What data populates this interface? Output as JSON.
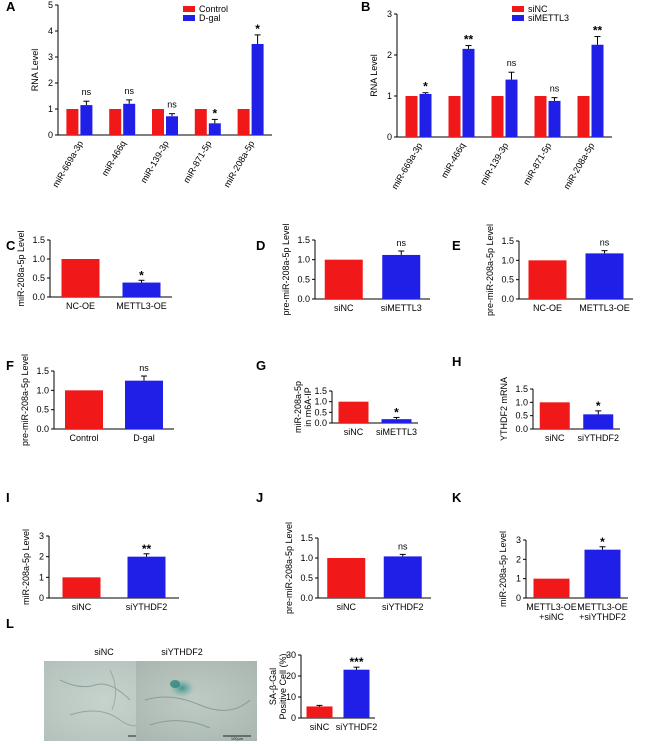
{
  "colors": {
    "red": "#f01818",
    "blue": "#1f1fe8"
  },
  "micrographs": [
    {
      "panel": "L",
      "label": "siNC",
      "scale_text": "100μm"
    },
    {
      "panel": "L",
      "label": "siYTHDF2",
      "scale_text": "100μm"
    }
  ],
  "chart_data": [
    {
      "panel": "A",
      "type": "bar",
      "ylabel": "RNA Level",
      "ylim": [
        0,
        5
      ],
      "yticks": [
        0,
        1,
        2,
        3,
        4,
        5
      ],
      "categories": [
        "miR-669a-3p",
        "miR-466q",
        "miR-139-3p",
        "miR-871-5p",
        "miR-208a-5p"
      ],
      "series": [
        {
          "name": "Control",
          "color": "red",
          "values": [
            1,
            1,
            1,
            1,
            1
          ],
          "err": [
            0,
            0,
            0,
            0,
            0
          ]
        },
        {
          "name": "D-gal",
          "color": "blue",
          "values": [
            1.15,
            1.2,
            0.72,
            0.45,
            3.5
          ],
          "err": [
            0.15,
            0.15,
            0.1,
            0.15,
            0.35
          ]
        }
      ],
      "annotations": [
        "ns",
        "ns",
        "ns",
        "*",
        "*"
      ],
      "legend": "top-right"
    },
    {
      "panel": "B",
      "type": "bar",
      "ylabel": "RNA Level",
      "ylim": [
        0,
        3
      ],
      "yticks": [
        0,
        1,
        2,
        3
      ],
      "categories": [
        "miR-669a-3p",
        "miR-466q",
        "miR-139-3p",
        "miR-871-5p",
        "miR-208a-5p"
      ],
      "series": [
        {
          "name": "siNC",
          "color": "red",
          "values": [
            1,
            1,
            1,
            1,
            1
          ],
          "err": [
            0,
            0,
            0,
            0,
            0
          ]
        },
        {
          "name": "siMETTL3",
          "color": "blue",
          "values": [
            1.05,
            2.15,
            1.4,
            0.88,
            2.25
          ],
          "err": [
            0.03,
            0.08,
            0.18,
            0.08,
            0.2
          ]
        }
      ],
      "annotations": [
        "*",
        "**",
        "ns",
        "ns",
        "**"
      ],
      "legend": "top-right"
    },
    {
      "panel": "C",
      "type": "bar",
      "ylabel": "miR-208a-5p Level",
      "ylim": [
        0,
        1.5
      ],
      "yticks": [
        "0.0",
        "0.5",
        "1.0",
        "1.5"
      ],
      "categories": [
        "NC-OE",
        "METTL3-OE"
      ],
      "values": [
        1.0,
        0.38
      ],
      "err": [
        0,
        0.06
      ],
      "colors": [
        "red",
        "blue"
      ],
      "annotations": [
        "",
        "*"
      ]
    },
    {
      "panel": "D",
      "type": "bar",
      "ylabel": "pre-miR-208a-5p Level",
      "ylim": [
        0,
        1.5
      ],
      "yticks": [
        "0.0",
        "0.5",
        "1.0",
        "1.5"
      ],
      "categories": [
        "siNC",
        "siMETTL3"
      ],
      "values": [
        1.0,
        1.12
      ],
      "err": [
        0,
        0.1
      ],
      "colors": [
        "red",
        "blue"
      ],
      "annotations": [
        "",
        "ns"
      ]
    },
    {
      "panel": "E",
      "type": "bar",
      "ylabel": "pre-miR-208a-5p Level",
      "ylim": [
        0,
        1.5
      ],
      "yticks": [
        "0.0",
        "0.5",
        "1.0",
        "1.5"
      ],
      "categories": [
        "NC-OE",
        "METTL3-OE"
      ],
      "values": [
        1.0,
        1.18
      ],
      "err": [
        0,
        0.07
      ],
      "colors": [
        "red",
        "blue"
      ],
      "annotations": [
        "",
        "ns"
      ]
    },
    {
      "panel": "F",
      "type": "bar",
      "ylabel": "pre-miR-208a-5p Level",
      "ylim": [
        0,
        1.5
      ],
      "yticks": [
        "0.0",
        "0.5",
        "1.0",
        "1.5"
      ],
      "categories": [
        "Control",
        "D-gal"
      ],
      "values": [
        1.0,
        1.25
      ],
      "err": [
        0,
        0.12
      ],
      "colors": [
        "red",
        "blue"
      ],
      "annotations": [
        "",
        "ns"
      ]
    },
    {
      "panel": "G",
      "type": "bar",
      "ylabel": "miR-208a-5p\nin m6A-IP",
      "ylim": [
        0,
        1.5
      ],
      "yticks": [
        "0.0",
        "0.5",
        "1.0",
        "1.5"
      ],
      "categories": [
        "siNC",
        "siMETTL3"
      ],
      "values": [
        1.0,
        0.18
      ],
      "err": [
        0,
        0.08
      ],
      "colors": [
        "red",
        "blue"
      ],
      "annotations": [
        "",
        "*"
      ]
    },
    {
      "panel": "H",
      "type": "bar",
      "ylabel": "YTHDF2 mRNA",
      "ylim": [
        0,
        1.5
      ],
      "yticks": [
        "0.0",
        "0.5",
        "1.0",
        "1.5"
      ],
      "categories": [
        "siNC",
        "siYTHDF2"
      ],
      "values": [
        1.0,
        0.55
      ],
      "err": [
        0,
        0.13
      ],
      "colors": [
        "red",
        "blue"
      ],
      "annotations": [
        "",
        "*"
      ]
    },
    {
      "panel": "I",
      "type": "bar",
      "ylabel": "miR-208a-5p Level",
      "ylim": [
        0,
        3
      ],
      "yticks": [
        "0",
        "1",
        "2",
        "3"
      ],
      "categories": [
        "siNC",
        "siYTHDF2"
      ],
      "values": [
        1.0,
        2.0
      ],
      "err": [
        0,
        0.14
      ],
      "colors": [
        "red",
        "blue"
      ],
      "annotations": [
        "",
        "**"
      ]
    },
    {
      "panel": "J",
      "type": "bar",
      "ylabel": "pre-miR-208a-5p Level",
      "ylim": [
        0,
        1.5
      ],
      "yticks": [
        "0.0",
        "0.5",
        "1.0",
        "1.5"
      ],
      "categories": [
        "siNC",
        "siYTHDF2"
      ],
      "values": [
        1.0,
        1.04
      ],
      "err": [
        0,
        0.05
      ],
      "colors": [
        "red",
        "blue"
      ],
      "annotations": [
        "",
        "ns"
      ]
    },
    {
      "panel": "K",
      "type": "bar",
      "ylabel": "miR-208a-5p Level",
      "ylim": [
        0,
        3
      ],
      "yticks": [
        "0",
        "1",
        "2",
        "3"
      ],
      "categories": [
        "METTL3-OE\n+siNC",
        "METTL3-OE\n+siYTHDF2"
      ],
      "values": [
        1.0,
        2.5
      ],
      "err": [
        0,
        0.15
      ],
      "colors": [
        "red",
        "blue"
      ],
      "annotations": [
        "",
        "*"
      ]
    },
    {
      "panel": "L",
      "type": "bar",
      "ylabel": "SA-β-Gal\nPositive Cell (%)",
      "ylim": [
        0,
        30
      ],
      "yticks": [
        "0",
        "10",
        "20",
        "30"
      ],
      "categories": [
        "siNC",
        "siYTHDF2"
      ],
      "values": [
        5.5,
        23
      ],
      "err": [
        0.5,
        1.2
      ],
      "colors": [
        "red",
        "blue"
      ],
      "annotations": [
        "",
        "***"
      ]
    }
  ]
}
